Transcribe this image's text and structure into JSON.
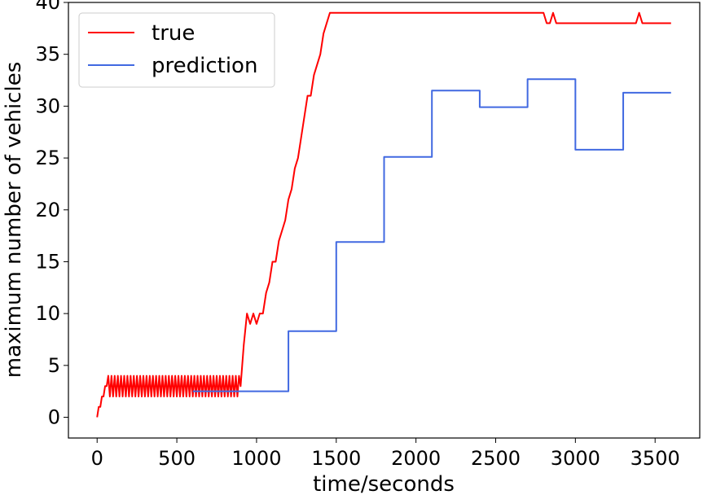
{
  "chart_data": {
    "type": "line",
    "title": "",
    "xlabel": "time/seconds",
    "ylabel": "maximum number of vehicles",
    "xlim": [
      -180,
      3780
    ],
    "ylim": [
      -2,
      40
    ],
    "xticks": [
      0,
      500,
      1000,
      1500,
      2000,
      2500,
      3000,
      3500
    ],
    "yticks": [
      0,
      5,
      10,
      15,
      20,
      25,
      30,
      35,
      40
    ],
    "grid": false,
    "legend": "upper left",
    "series": [
      {
        "name": "true",
        "color": "#ff0000",
        "x": [
          0,
          10,
          20,
          30,
          40,
          50,
          60,
          70,
          80,
          90,
          100,
          110,
          120,
          130,
          140,
          150,
          160,
          170,
          180,
          190,
          200,
          210,
          220,
          230,
          240,
          250,
          260,
          270,
          280,
          290,
          300,
          310,
          320,
          330,
          340,
          350,
          360,
          370,
          380,
          390,
          400,
          410,
          420,
          430,
          440,
          450,
          460,
          470,
          480,
          490,
          500,
          510,
          520,
          530,
          540,
          550,
          560,
          570,
          580,
          590,
          600,
          610,
          620,
          630,
          640,
          650,
          660,
          670,
          680,
          690,
          700,
          710,
          720,
          730,
          740,
          750,
          760,
          770,
          780,
          790,
          800,
          810,
          820,
          830,
          840,
          850,
          860,
          870,
          880,
          890,
          900,
          920,
          940,
          960,
          980,
          1000,
          1020,
          1040,
          1060,
          1080,
          1100,
          1120,
          1140,
          1160,
          1180,
          1200,
          1220,
          1240,
          1260,
          1280,
          1300,
          1320,
          1340,
          1360,
          1380,
          1400,
          1420,
          1440,
          1460,
          1480,
          1500,
          1520,
          1540,
          1560,
          1580,
          1600,
          1620,
          1640,
          1660,
          1680,
          2800,
          2820,
          2840,
          2860,
          2880,
          2900,
          3380,
          3400,
          3420,
          3600
        ],
        "y": [
          0,
          1,
          1,
          2,
          2,
          3,
          3,
          4,
          2,
          4,
          2,
          4,
          2,
          4,
          2,
          4,
          2,
          4,
          2,
          4,
          2,
          4,
          2,
          4,
          2,
          4,
          2,
          4,
          2,
          4,
          2,
          4,
          2,
          4,
          2,
          4,
          2,
          4,
          2,
          4,
          2,
          4,
          2,
          4,
          2,
          4,
          2,
          4,
          2,
          4,
          2,
          4,
          2,
          4,
          2,
          4,
          2,
          4,
          2,
          4,
          2,
          4,
          2,
          4,
          2,
          4,
          2,
          4,
          2,
          4,
          2,
          4,
          2,
          4,
          2,
          4,
          2,
          4,
          2,
          4,
          2,
          4,
          2,
          4,
          2,
          4,
          2,
          4,
          2,
          4,
          3,
          7,
          10,
          9,
          10,
          9,
          10,
          10,
          12,
          13,
          15,
          15,
          17,
          18,
          19,
          21,
          22,
          24,
          25,
          27,
          29,
          31,
          31,
          33,
          34,
          35,
          37,
          38,
          39,
          39,
          39,
          39,
          39,
          39,
          39,
          39,
          39,
          39,
          39,
          39,
          39,
          38,
          38,
          39,
          38,
          38,
          38,
          39,
          38,
          38
        ],
        "dense_note": ""
      },
      {
        "name": "prediction",
        "color": "#4169e1",
        "x": [
          600,
          1200,
          1200,
          1500,
          1500,
          1800,
          1800,
          2100,
          2100,
          2400,
          2400,
          2700,
          2700,
          3000,
          3000,
          3300,
          3300,
          3600
        ],
        "y": [
          2.5,
          2.5,
          8.3,
          8.3,
          16.9,
          16.9,
          25.1,
          25.1,
          31.5,
          31.5,
          29.9,
          29.9,
          32.6,
          32.6,
          25.8,
          25.8,
          31.3,
          31.3
        ]
      }
    ]
  }
}
